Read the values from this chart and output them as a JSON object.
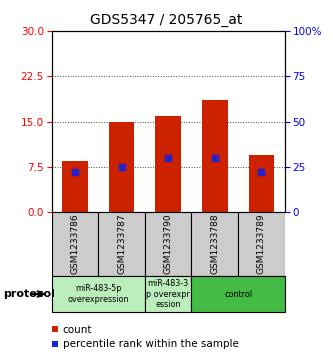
{
  "title": "GDS5347 / 205765_at",
  "samples": [
    "GSM1233786",
    "GSM1233787",
    "GSM1233790",
    "GSM1233788",
    "GSM1233789"
  ],
  "count_values": [
    8.5,
    15.0,
    16.0,
    18.5,
    9.5
  ],
  "percentile_values": [
    22,
    25,
    30,
    30,
    22
  ],
  "ylim_left": [
    0,
    30
  ],
  "ylim_right": [
    0,
    100
  ],
  "yticks_left": [
    0,
    7.5,
    15,
    22.5,
    30
  ],
  "yticks_right": [
    0,
    25,
    50,
    75,
    100
  ],
  "bar_color": "#cc2200",
  "percentile_color": "#2222cc",
  "background_color": "#ffffff",
  "group_defs": [
    {
      "label": "miR-483-5p\noverexpression",
      "indices": [
        0,
        1
      ],
      "color": "#bbeebb"
    },
    {
      "label": "miR-483-3\np overexpr\nession",
      "indices": [
        2
      ],
      "color": "#bbeebb"
    },
    {
      "label": "control",
      "indices": [
        3,
        4
      ],
      "color": "#44bb44"
    }
  ],
  "protocol_label": "protocol",
  "legend_count_label": "count",
  "legend_percentile_label": "percentile rank within the sample",
  "bar_width": 0.55
}
